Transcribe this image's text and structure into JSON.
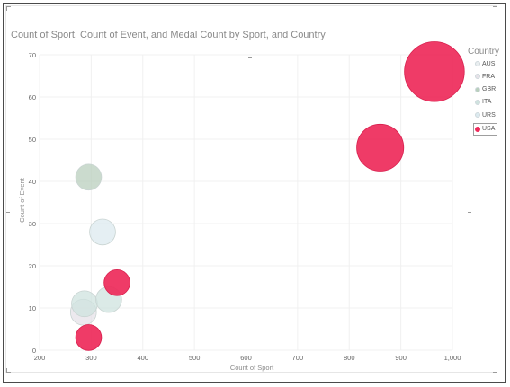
{
  "chart_data": {
    "type": "scatter",
    "title": "Count of Sport, Count of Event, and Medal Count by Sport, and Country",
    "xlabel": "Count of Sport",
    "ylabel": "Count of Event",
    "xlim": [
      200,
      1000
    ],
    "ylim": [
      0,
      70
    ],
    "x_ticks": [
      200,
      300,
      400,
      500,
      600,
      700,
      800,
      900,
      1000
    ],
    "x_tick_labels": [
      "200",
      "300",
      "400",
      "500",
      "600",
      "700",
      "800",
      "900",
      "1,000"
    ],
    "y_ticks": [
      0,
      10,
      20,
      30,
      40,
      50,
      60,
      70
    ],
    "y_tick_labels": [
      "0",
      "10",
      "20",
      "30",
      "40",
      "50",
      "60",
      "70"
    ],
    "grid": true,
    "legend": {
      "title": "Country",
      "placement": "right",
      "items": [
        {
          "label": "AUS",
          "color": "#e9eef0"
        },
        {
          "label": "FRA",
          "color": "#e6e2e8"
        },
        {
          "label": "GBR",
          "color": "#b9cfbd"
        },
        {
          "label": "ITA",
          "color": "#cfe3df"
        },
        {
          "label": "URS",
          "color": "#dceaef"
        },
        {
          "label": "USA",
          "color": "#ee2a5a",
          "selected": true
        }
      ]
    },
    "points": [
      {
        "country": "FRA",
        "x": 285,
        "y": 9,
        "size": 0.8,
        "color": "#e6e2e8"
      },
      {
        "country": "ITA",
        "x": 287,
        "y": 11,
        "size": 0.8,
        "color": "#cfe3df"
      },
      {
        "country": "GBR",
        "x": 295,
        "y": 41,
        "size": 0.8,
        "color": "#b9cfbd"
      },
      {
        "country": "URS",
        "x": 322,
        "y": 28,
        "size": 0.8,
        "color": "#dceaef"
      },
      {
        "country": "ITA",
        "x": 334,
        "y": 12,
        "size": 0.8,
        "color": "#cfe3df"
      },
      {
        "country": "USA",
        "x": 350,
        "y": 16,
        "size": 0.8,
        "color": "#ee2a5a"
      },
      {
        "country": "USA",
        "x": 295,
        "y": 3,
        "size": 0.8,
        "color": "#ee2a5a"
      },
      {
        "country": "USA",
        "x": 860,
        "y": 48,
        "size": 1.45,
        "color": "#ee2a5a"
      },
      {
        "country": "USA",
        "x": 965,
        "y": 66,
        "size": 1.85,
        "color": "#ee2a5a"
      }
    ]
  }
}
